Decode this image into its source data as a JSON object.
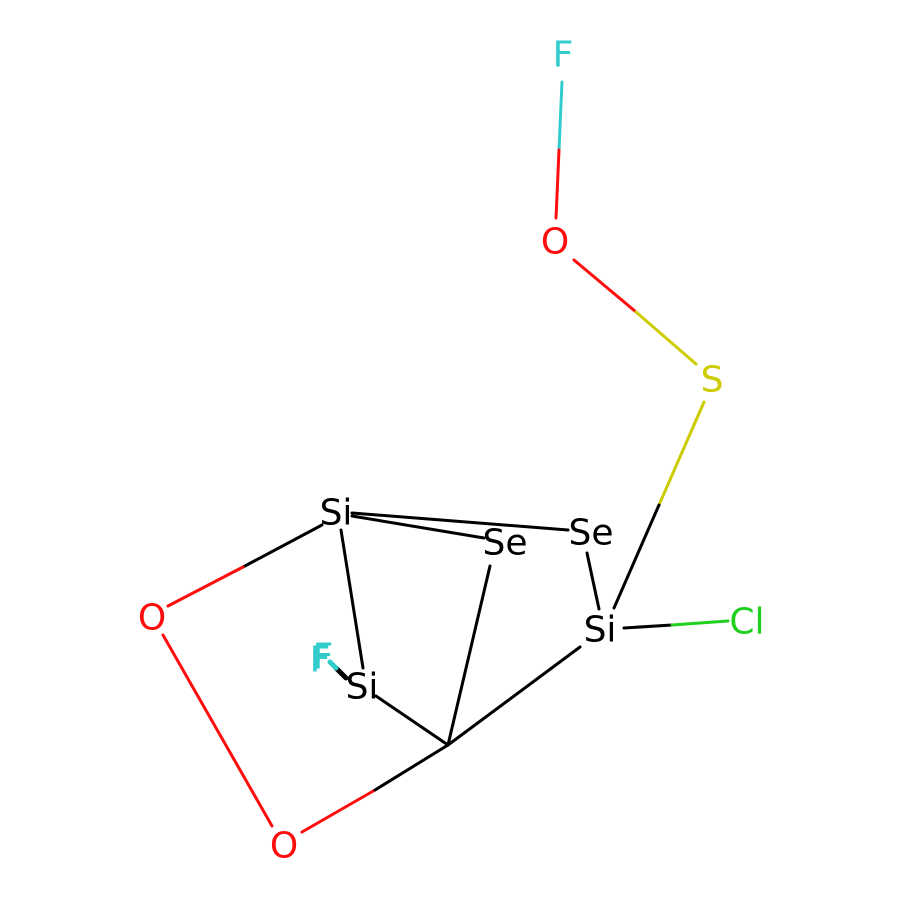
{
  "colors": {
    "carbon": "#000000",
    "silicon": "#000000",
    "selenium": "#000000",
    "oxygen": "#ff0d0d",
    "sulfur": "#cccc00",
    "chlorine": "#1fd01f",
    "fluorine": "#33cccc",
    "background": "#ffffff"
  },
  "atoms": {
    "f_top": "F",
    "o_top": "O",
    "s": "S",
    "se_right": "Se",
    "se_mid": "Se",
    "si_top": "Si",
    "si_right": "Si",
    "si_left": "Si",
    "cl": "Cl",
    "f_left_a": "F",
    "f_left_b": "F",
    "o_left": "O",
    "o_bottom": "O"
  }
}
